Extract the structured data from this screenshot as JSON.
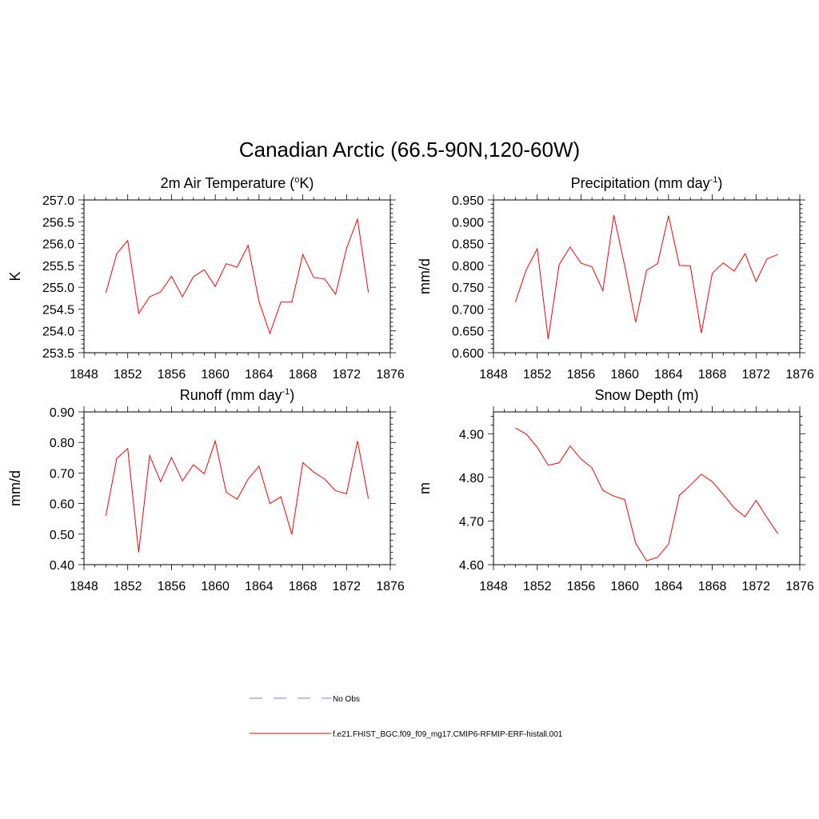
{
  "title": "Canadian Arctic (66.5-90N,120-60W)",
  "colors": {
    "model": "#ff0000",
    "obs": "#9999dd",
    "axis": "#000000"
  },
  "legend": {
    "obs_label": "No Obs",
    "model_label": "f.e21.FHIST_BGC.f09_f09_mg17.CMIP6-RFMIP-ERF-histall.001"
  },
  "chart_data": [
    {
      "type": "line",
      "title": "2m Air Temperature (",
      "title_sup_pre": "o",
      "title_after": "K)",
      "title_sup_post": "",
      "title_end": "",
      "ylabel": "K",
      "xlim": [
        1848,
        1876
      ],
      "ylim": [
        253.5,
        257.0
      ],
      "xticks": [
        "1848",
        "1852",
        "1856",
        "1860",
        "1864",
        "1868",
        "1872",
        "1876"
      ],
      "yticks": [
        "253.5",
        "254.0",
        "254.5",
        "255.0",
        "255.5",
        "256.0",
        "256.5",
        "257.0"
      ],
      "x": [
        1850,
        1851,
        1852,
        1853,
        1854,
        1855,
        1856,
        1857,
        1858,
        1859,
        1860,
        1861,
        1862,
        1863,
        1864,
        1865,
        1866,
        1867,
        1868,
        1869,
        1870,
        1871,
        1872,
        1873,
        1874
      ],
      "series": [
        {
          "name": "f.e21.FHIST_BGC.f09_f09_mg17.CMIP6-RFMIP-ERF-histall.001",
          "values": [
            254.87,
            255.77,
            256.07,
            254.4,
            254.78,
            254.89,
            255.25,
            254.78,
            255.24,
            255.4,
            255.02,
            255.54,
            255.46,
            255.96,
            254.67,
            253.94,
            254.66,
            254.66,
            255.75,
            255.22,
            255.19,
            254.84,
            255.89,
            256.56,
            254.88
          ]
        }
      ]
    },
    {
      "type": "line",
      "title": "Precipitation (mm day",
      "title_sup_pre": "",
      "title_after": "",
      "title_sup_post": "-1",
      "title_end": ")",
      "ylabel": "mm/d",
      "xlim": [
        1848,
        1876
      ],
      "ylim": [
        0.6,
        0.95
      ],
      "xticks": [
        "1848",
        "1852",
        "1856",
        "1860",
        "1864",
        "1868",
        "1872",
        "1876"
      ],
      "yticks": [
        "0.600",
        "0.650",
        "0.700",
        "0.750",
        "0.800",
        "0.850",
        "0.900",
        "0.950"
      ],
      "x": [
        1850,
        1851,
        1852,
        1853,
        1854,
        1855,
        1856,
        1857,
        1858,
        1859,
        1860,
        1861,
        1862,
        1863,
        1864,
        1865,
        1866,
        1867,
        1868,
        1869,
        1870,
        1871,
        1872,
        1873,
        1874
      ],
      "series": [
        {
          "name": "f.e21.FHIST_BGC.f09_f09_mg17.CMIP6-RFMIP-ERF-histall.001",
          "values": [
            0.716,
            0.79,
            0.838,
            0.631,
            0.802,
            0.842,
            0.805,
            0.797,
            0.742,
            0.915,
            0.799,
            0.67,
            0.789,
            0.804,
            0.914,
            0.8,
            0.799,
            0.645,
            0.782,
            0.806,
            0.787,
            0.827,
            0.763,
            0.815,
            0.825
          ]
        }
      ]
    },
    {
      "type": "line",
      "title": "Runoff (mm day",
      "title_sup_pre": "",
      "title_after": "",
      "title_sup_post": "-1",
      "title_end": ")",
      "ylabel": "mm/d",
      "xlim": [
        1848,
        1876
      ],
      "ylim": [
        0.4,
        0.9
      ],
      "xticks": [
        "1848",
        "1852",
        "1856",
        "1860",
        "1864",
        "1868",
        "1872",
        "1876"
      ],
      "yticks": [
        "0.40",
        "0.50",
        "0.60",
        "0.70",
        "0.80",
        "0.90"
      ],
      "x": [
        1850,
        1851,
        1852,
        1853,
        1854,
        1855,
        1856,
        1857,
        1858,
        1859,
        1860,
        1861,
        1862,
        1863,
        1864,
        1865,
        1866,
        1867,
        1868,
        1869,
        1870,
        1871,
        1872,
        1873,
        1874
      ],
      "series": [
        {
          "name": "f.e21.FHIST_BGC.f09_f09_mg17.CMIP6-RFMIP-ERF-histall.001",
          "values": [
            0.56,
            0.748,
            0.78,
            0.44,
            0.757,
            0.672,
            0.751,
            0.674,
            0.727,
            0.697,
            0.805,
            0.637,
            0.614,
            0.68,
            0.722,
            0.6,
            0.622,
            0.499,
            0.734,
            0.703,
            0.68,
            0.642,
            0.632,
            0.805,
            0.616
          ]
        }
      ]
    },
    {
      "type": "line",
      "title": "Snow Depth (m)",
      "title_sup_pre": "",
      "title_after": "",
      "title_sup_post": "",
      "title_end": "",
      "ylabel": "m",
      "xlim": [
        1848,
        1876
      ],
      "ylim": [
        4.6,
        4.95
      ],
      "xticks": [
        "1848",
        "1852",
        "1856",
        "1860",
        "1864",
        "1868",
        "1872",
        "1876"
      ],
      "yticks": [
        "4.60",
        "4.70",
        "4.80",
        "4.90"
      ],
      "x": [
        1850,
        1851,
        1852,
        1853,
        1854,
        1855,
        1856,
        1857,
        1858,
        1859,
        1860,
        1861,
        1862,
        1863,
        1864,
        1865,
        1866,
        1867,
        1868,
        1869,
        1870,
        1871,
        1872,
        1873,
        1874
      ],
      "series": [
        {
          "name": "f.e21.FHIST_BGC.f09_f09_mg17.CMIP6-RFMIP-ERF-histall.001",
          "values": [
            4.913,
            4.899,
            4.869,
            4.828,
            4.833,
            4.872,
            4.842,
            4.822,
            4.77,
            4.757,
            4.749,
            4.649,
            4.609,
            4.617,
            4.647,
            4.759,
            4.782,
            4.807,
            4.79,
            4.761,
            4.73,
            4.71,
            4.747,
            4.708,
            4.671
          ]
        }
      ]
    }
  ]
}
